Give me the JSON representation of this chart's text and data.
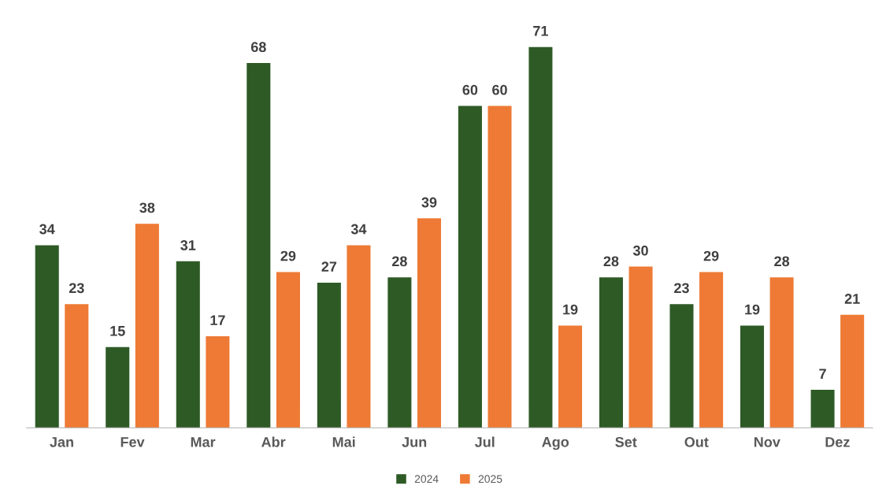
{
  "chart_data": {
    "type": "bar",
    "categories": [
      "Jan",
      "Fev",
      "Mar",
      "Abr",
      "Mai",
      "Jun",
      "Jul",
      "Ago",
      "Set",
      "Out",
      "Nov",
      "Dez"
    ],
    "series": [
      {
        "name": "2024",
        "color": "#2e5a26",
        "values": [
          34,
          15,
          31,
          68,
          27,
          28,
          60,
          71,
          28,
          23,
          19,
          7
        ]
      },
      {
        "name": "2025",
        "color": "#ee7a35",
        "values": [
          23,
          38,
          17,
          29,
          34,
          39,
          60,
          19,
          30,
          29,
          28,
          21
        ]
      }
    ],
    "data_labels": true,
    "legend": "bottom",
    "grid": false
  }
}
